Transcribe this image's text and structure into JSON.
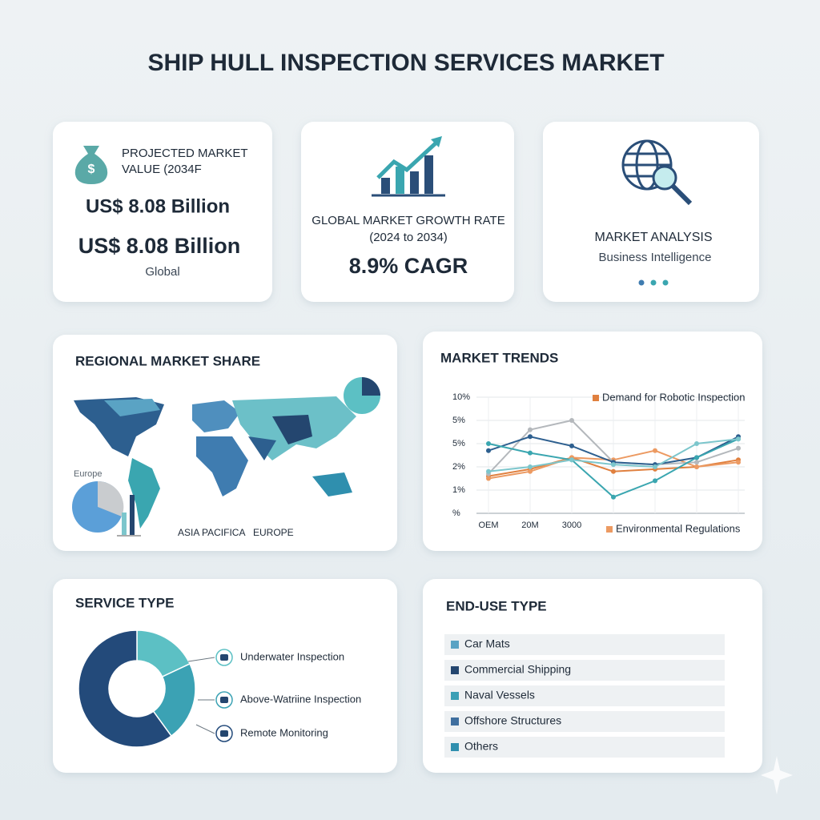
{
  "title": "SHIP HULL INSPECTION SERVICES MARKET",
  "cards": [
    {
      "heading": [
        "PROJECTED MARKET",
        "VALUE (2034F"
      ],
      "values": [
        "US$ 8.08 Billion",
        "US$ 8.08 Billion"
      ],
      "note": "Global"
    },
    {
      "heading": [
        "GLOBAL MARKET GROWTH RATE",
        "(2024 to 2034)"
      ],
      "value": "8.9% CAGR"
    },
    {
      "heading": "MARKET ANALYSIS",
      "note": "Business Intelligence"
    }
  ],
  "regional": {
    "title": "REGIONAL MARKET SHARE",
    "labels": [
      "Europe",
      "ASIA PACIFICA",
      "EUROPE"
    ]
  },
  "end_use": {
    "title": "END-USE TYPE",
    "items": [
      {
        "label": "Car Mats",
        "color": "#5aa3c4"
      },
      {
        "label": "Commercial Shipping",
        "color": "#24466f"
      },
      {
        "label": "Naval Vessels",
        "color": "#3a9fb5"
      },
      {
        "label": "Offshore Structures",
        "color": "#3f6f9f"
      },
      {
        "label": "Others",
        "color": "#2f8fae"
      }
    ]
  },
  "chart_data": [
    {
      "type": "line",
      "title": "MARKET TRENDS",
      "categories": [
        "OEM",
        "20M",
        "3000",
        null,
        null,
        null,
        null
      ],
      "ylim": [
        0,
        5
      ],
      "yticks": [
        {
          "value": 0,
          "label": "%"
        },
        {
          "value": 1,
          "label": "1%"
        },
        {
          "value": 2,
          "label": "2%"
        },
        {
          "value": 3,
          "label": "5%"
        },
        {
          "value": 4,
          "label": "5%"
        },
        {
          "value": 5,
          "label": "10%"
        }
      ],
      "grid": true,
      "series": [
        {
          "name": "Demand for Robotic Inspection",
          "color": "#e0803f",
          "values": [
            1.6,
            1.9,
            2.4,
            1.8,
            1.9,
            2.0,
            2.3
          ]
        },
        {
          "name": "Environmental Regulations",
          "color": "#ec9a62",
          "values": [
            1.5,
            1.8,
            2.4,
            2.3,
            2.7,
            2.0,
            2.2
          ]
        },
        {
          "color": "#b4b8bc",
          "values": [
            1.7,
            3.6,
            4.0,
            2.2,
            2.1,
            2.2,
            2.8
          ]
        },
        {
          "color": "#2d5f8f",
          "values": [
            2.7,
            3.3,
            2.9,
            2.2,
            2.1,
            2.4,
            3.3
          ]
        },
        {
          "color": "#3aa6b0",
          "values": [
            3.0,
            2.6,
            2.3,
            0.7,
            1.4,
            2.4,
            3.2
          ]
        },
        {
          "color": "#7cc6cc",
          "values": [
            1.8,
            2.0,
            2.3,
            2.1,
            2.0,
            3.0,
            3.2
          ]
        }
      ]
    },
    {
      "type": "pie",
      "title": "SERVICE TYPE",
      "categories": [
        "Underwater Inspection",
        "Above-Watriine Inspection",
        "Remote Monitoring"
      ],
      "values": [
        18,
        22,
        60
      ],
      "colors": [
        "#5cc0c4",
        "#3ba2b4",
        "#234a7a"
      ]
    }
  ]
}
